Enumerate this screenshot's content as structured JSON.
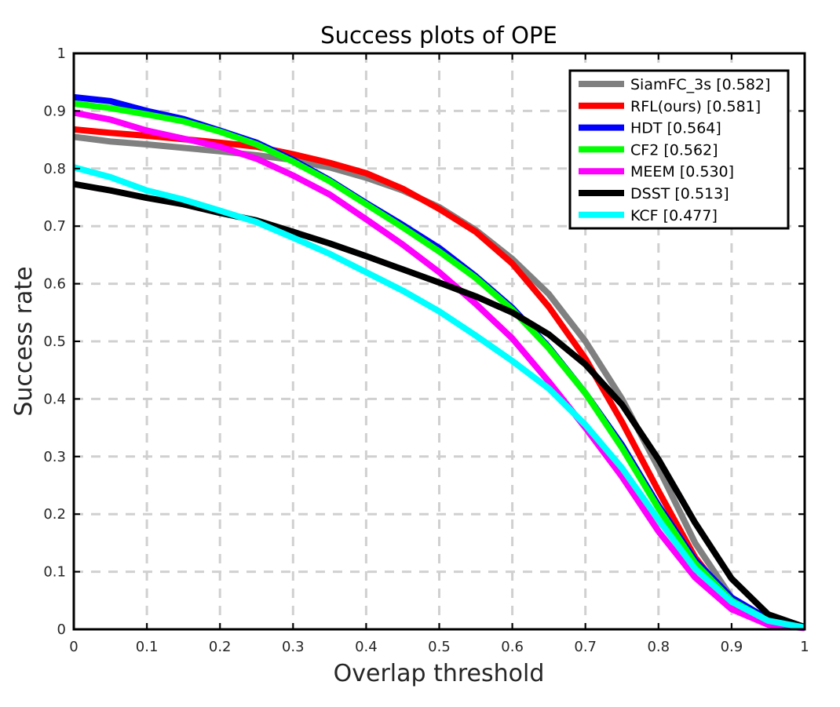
{
  "chart_data": {
    "type": "line",
    "title": "Success plots of OPE",
    "xlabel": "Overlap threshold",
    "ylabel": "Success rate",
    "xlim": [
      0,
      1
    ],
    "ylim": [
      0,
      1
    ],
    "grid": true,
    "legend_position": "top-right",
    "x": [
      0,
      0.05,
      0.1,
      0.15,
      0.2,
      0.25,
      0.3,
      0.35,
      0.4,
      0.45,
      0.5,
      0.55,
      0.6,
      0.65,
      0.7,
      0.75,
      0.8,
      0.85,
      0.9,
      0.95,
      1.0
    ],
    "x_ticks": [
      "0",
      "0.1",
      "0.2",
      "0.3",
      "0.4",
      "0.5",
      "0.6",
      "0.7",
      "0.8",
      "0.9",
      "1"
    ],
    "y_ticks": [
      "0",
      "0.1",
      "0.2",
      "0.3",
      "0.4",
      "0.5",
      "0.6",
      "0.7",
      "0.8",
      "0.9",
      "1"
    ],
    "series": [
      {
        "name": "SiamFC_3s [0.582]",
        "color": "#808080",
        "values": [
          0.855,
          0.847,
          0.842,
          0.836,
          0.83,
          0.823,
          0.815,
          0.802,
          0.784,
          0.762,
          0.733,
          0.693,
          0.643,
          0.582,
          0.5,
          0.4,
          0.28,
          0.15,
          0.055,
          0.015,
          0.003
        ]
      },
      {
        "name": "RFL(ours) [0.581]",
        "color": "#ff0000",
        "values": [
          0.868,
          0.862,
          0.857,
          0.851,
          0.845,
          0.838,
          0.825,
          0.81,
          0.792,
          0.765,
          0.73,
          0.69,
          0.635,
          0.56,
          0.47,
          0.36,
          0.24,
          0.125,
          0.045,
          0.012,
          0.003
        ]
      },
      {
        "name": "HDT [0.564]",
        "color": "#0000ff",
        "values": [
          0.924,
          0.917,
          0.9,
          0.886,
          0.866,
          0.845,
          0.815,
          0.78,
          0.74,
          0.702,
          0.662,
          0.613,
          0.558,
          0.49,
          0.41,
          0.32,
          0.215,
          0.12,
          0.055,
          0.018,
          0.003
        ]
      },
      {
        "name": "CF2 [0.562]",
        "color": "#00ff00",
        "values": [
          0.913,
          0.905,
          0.894,
          0.882,
          0.864,
          0.842,
          0.812,
          0.778,
          0.738,
          0.698,
          0.656,
          0.61,
          0.555,
          0.488,
          0.41,
          0.315,
          0.21,
          0.115,
          0.05,
          0.015,
          0.003
        ]
      },
      {
        "name": "MEEM [0.530]",
        "color": "#ff00ff",
        "values": [
          0.897,
          0.885,
          0.866,
          0.852,
          0.838,
          0.817,
          0.788,
          0.755,
          0.712,
          0.668,
          0.62,
          0.565,
          0.505,
          0.43,
          0.35,
          0.265,
          0.17,
          0.09,
          0.035,
          0.008,
          0.002
        ]
      },
      {
        "name": "DSST [0.513]",
        "color": "#000000",
        "values": [
          0.773,
          0.762,
          0.749,
          0.738,
          0.723,
          0.71,
          0.69,
          0.67,
          0.648,
          0.625,
          0.602,
          0.578,
          0.55,
          0.512,
          0.46,
          0.39,
          0.295,
          0.185,
          0.088,
          0.026,
          0.004
        ]
      },
      {
        "name": "KCF [0.477]",
        "color": "#00ffff",
        "values": [
          0.802,
          0.785,
          0.762,
          0.746,
          0.727,
          0.707,
          0.68,
          0.652,
          0.62,
          0.588,
          0.552,
          0.51,
          0.466,
          0.418,
          0.355,
          0.28,
          0.19,
          0.105,
          0.048,
          0.015,
          0.003
        ]
      }
    ]
  }
}
